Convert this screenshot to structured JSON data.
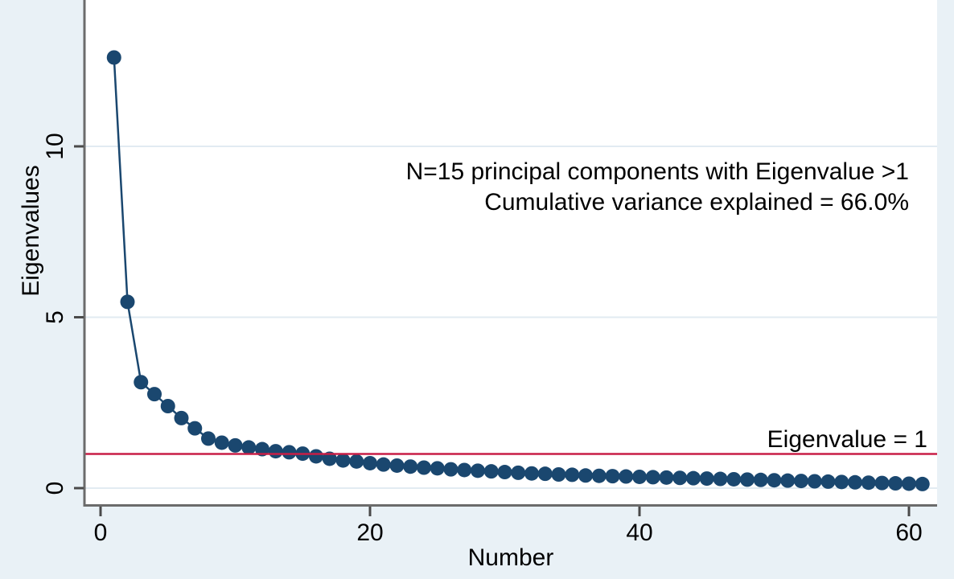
{
  "chart_data": {
    "type": "line",
    "title": "",
    "xlabel": "Number",
    "ylabel": "Eigenvalues",
    "x": [
      1,
      2,
      3,
      4,
      5,
      6,
      7,
      8,
      9,
      10,
      11,
      12,
      13,
      14,
      15,
      16,
      17,
      18,
      19,
      20,
      21,
      22,
      23,
      24,
      25,
      26,
      27,
      28,
      29,
      30,
      31,
      32,
      33,
      34,
      35,
      36,
      37,
      38,
      39,
      40,
      41,
      42,
      43,
      44,
      45,
      46,
      47,
      48,
      49,
      50,
      51,
      52,
      53,
      54,
      55,
      56,
      57,
      58,
      59,
      60,
      61
    ],
    "series": [
      {
        "name": "Eigenvalues",
        "values": [
          12.6,
          5.45,
          3.1,
          2.75,
          2.4,
          2.05,
          1.75,
          1.45,
          1.33,
          1.25,
          1.19,
          1.14,
          1.08,
          1.05,
          1.01,
          0.93,
          0.86,
          0.81,
          0.78,
          0.73,
          0.69,
          0.66,
          0.63,
          0.6,
          0.58,
          0.55,
          0.53,
          0.51,
          0.49,
          0.47,
          0.45,
          0.43,
          0.42,
          0.4,
          0.39,
          0.37,
          0.36,
          0.35,
          0.34,
          0.33,
          0.32,
          0.31,
          0.3,
          0.29,
          0.28,
          0.27,
          0.26,
          0.25,
          0.24,
          0.23,
          0.22,
          0.21,
          0.2,
          0.19,
          0.18,
          0.17,
          0.16,
          0.15,
          0.14,
          0.13,
          0.12
        ]
      }
    ],
    "xlim": [
      0,
      62
    ],
    "ylim": [
      0,
      14.3
    ],
    "xtick_values": [
      0,
      20,
      40,
      60
    ],
    "xtick_labels": [
      "0",
      "20",
      "40",
      "60"
    ],
    "ytick_values": [
      0,
      5,
      10
    ],
    "ytick_labels": [
      "0",
      "5",
      "10"
    ],
    "grid": "horizontal",
    "legend_position": "none",
    "reference_line": {
      "value": 1,
      "label": "Eigenvalue = 1"
    },
    "annotations": [
      "N=15 principal components with Eigenvalue >1",
      "Cumulative variance explained = 66.0%"
    ],
    "colors": {
      "marker": "#1a476f",
      "line": "#1a476f",
      "reference_line": "#c81e46",
      "reference_text": "#b81c3e",
      "background": "#e9f1f6",
      "plot_background": "#ffffff",
      "grid": "#e2ebf2",
      "axis": "#6b6b6b",
      "tick": "#4a4a4a",
      "text": "#000000"
    }
  }
}
